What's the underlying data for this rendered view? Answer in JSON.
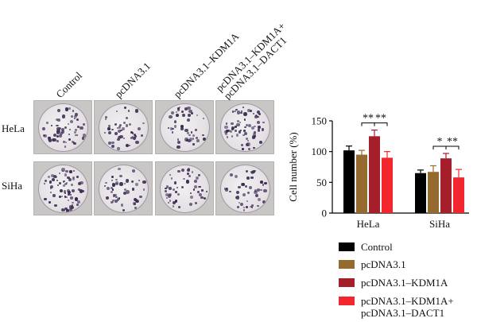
{
  "figure": {
    "columns": [
      "Control",
      "pcDNA3.1",
      "pcDNA3.1–KDM1A",
      "pcDNA3.1–KDM1A+\npcDNA3.1–DACT1"
    ],
    "rows": [
      "HeLa",
      "SiHa"
    ]
  },
  "chart_data": {
    "type": "bar",
    "categories": [
      "HeLa",
      "SiHa"
    ],
    "ylabel": "Cell number (%)",
    "ylim": [
      0,
      150
    ],
    "yticks": [
      0,
      50,
      100,
      150
    ],
    "series": [
      {
        "name": "Control",
        "color": "#000000",
        "values": [
          102,
          65
        ],
        "errors": [
          7,
          5
        ]
      },
      {
        "name": "pcDNA3.1",
        "color": "#946a2e",
        "values": [
          95,
          67
        ],
        "errors": [
          7,
          10
        ]
      },
      {
        "name": "pcDNA3.1–KDM1A",
        "color": "#a41f2a",
        "values": [
          125,
          89
        ],
        "errors": [
          10,
          8
        ]
      },
      {
        "name": "pcDNA3.1–KDM1A+\npcDNA3.1–DACT1",
        "color": "#f2262d",
        "values": [
          90,
          58
        ],
        "errors": [
          10,
          13
        ]
      }
    ],
    "significance": [
      {
        "category": "HeLa",
        "pair": [
          1,
          2
        ],
        "label": "**"
      },
      {
        "category": "HeLa",
        "pair": [
          2,
          3
        ],
        "label": "**"
      },
      {
        "category": "SiHa",
        "pair": [
          1,
          2
        ],
        "label": "*"
      },
      {
        "category": "SiHa",
        "pair": [
          2,
          3
        ],
        "label": "**"
      }
    ],
    "legend_position": "bottom"
  }
}
